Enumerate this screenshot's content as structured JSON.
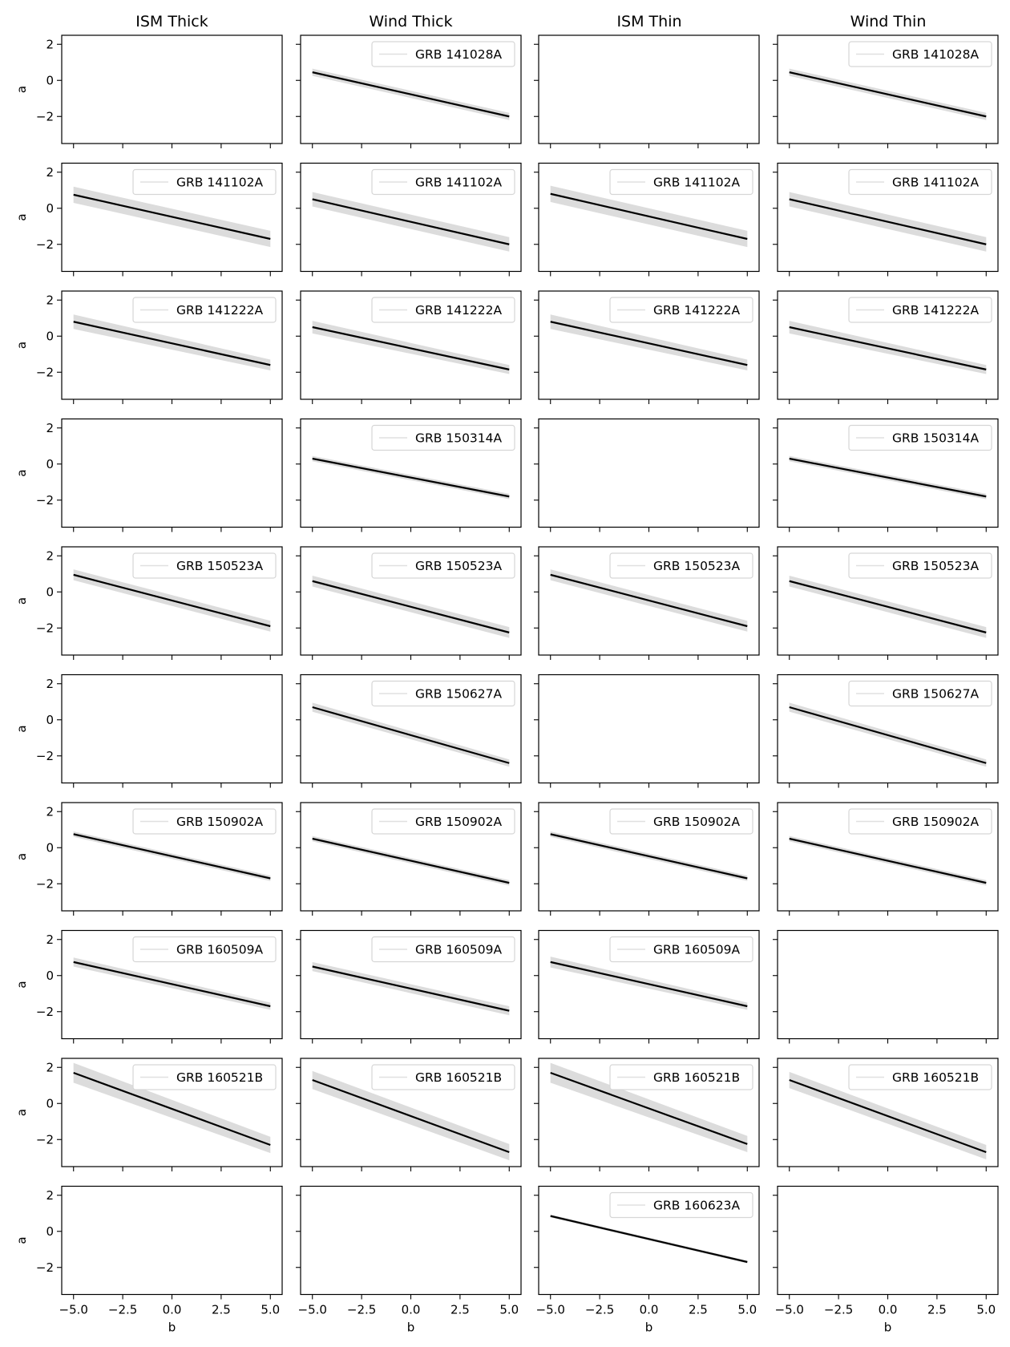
{
  "chart_data": {
    "type": "line",
    "layout": "grid-10x4",
    "columns": [
      "ISM Thick",
      "Wind Thick",
      "ISM Thin",
      "Wind Thin"
    ],
    "xlabel": "b",
    "ylabel": "a",
    "xlim": [
      -5.6,
      5.6
    ],
    "ylim": [
      -3.5,
      2.5
    ],
    "xticks": [
      -5.0,
      -2.5,
      0.0,
      2.5,
      5.0
    ],
    "xtick_labels": [
      "−5.0",
      "−2.5",
      "0.0",
      "2.5",
      "5.0"
    ],
    "yticks": [
      2,
      0,
      -2
    ],
    "ytick_labels": [
      "2",
      "0",
      "−2"
    ],
    "line_color": "#000000",
    "band_color": "#dcdcdc",
    "legend_placement": "upper right",
    "rows": [
      {
        "grb": "GRB 141028A",
        "panels": [
          null,
          {
            "y_start": 0.45,
            "y_end": -2.0,
            "band_start": 0.2,
            "band_end": 0.2
          },
          null,
          {
            "y_start": 0.45,
            "y_end": -2.0,
            "band_start": 0.2,
            "band_end": 0.2
          }
        ]
      },
      {
        "grb": "GRB 141102A",
        "panels": [
          {
            "y_start": 0.75,
            "y_end": -1.7,
            "band_start": 0.45,
            "band_end": 0.45
          },
          {
            "y_start": 0.5,
            "y_end": -2.0,
            "band_start": 0.4,
            "band_end": 0.4
          },
          {
            "y_start": 0.8,
            "y_end": -1.7,
            "band_start": 0.45,
            "band_end": 0.45
          },
          {
            "y_start": 0.5,
            "y_end": -2.0,
            "band_start": 0.4,
            "band_end": 0.4
          }
        ]
      },
      {
        "grb": "GRB 141222A",
        "panels": [
          {
            "y_start": 0.8,
            "y_end": -1.6,
            "band_start": 0.4,
            "band_end": 0.3
          },
          {
            "y_start": 0.5,
            "y_end": -1.85,
            "band_start": 0.35,
            "band_end": 0.25
          },
          {
            "y_start": 0.8,
            "y_end": -1.6,
            "band_start": 0.4,
            "band_end": 0.3
          },
          {
            "y_start": 0.5,
            "y_end": -1.85,
            "band_start": 0.35,
            "band_end": 0.25
          }
        ]
      },
      {
        "grb": "GRB 150314A",
        "panels": [
          null,
          {
            "y_start": 0.3,
            "y_end": -1.8,
            "band_start": 0.15,
            "band_end": 0.15
          },
          null,
          {
            "y_start": 0.3,
            "y_end": -1.8,
            "band_start": 0.15,
            "band_end": 0.15
          }
        ]
      },
      {
        "grb": "GRB 150523A",
        "panels": [
          {
            "y_start": 0.95,
            "y_end": -1.9,
            "band_start": 0.3,
            "band_end": 0.3
          },
          {
            "y_start": 0.6,
            "y_end": -2.25,
            "band_start": 0.3,
            "band_end": 0.3
          },
          {
            "y_start": 0.95,
            "y_end": -1.9,
            "band_start": 0.3,
            "band_end": 0.3
          },
          {
            "y_start": 0.6,
            "y_end": -2.25,
            "band_start": 0.3,
            "band_end": 0.3
          }
        ]
      },
      {
        "grb": "GRB 150627A",
        "panels": [
          null,
          {
            "y_start": 0.7,
            "y_end": -2.4,
            "band_start": 0.25,
            "band_end": 0.2
          },
          null,
          {
            "y_start": 0.7,
            "y_end": -2.4,
            "band_start": 0.25,
            "band_end": 0.2
          }
        ]
      },
      {
        "grb": "GRB 150902A",
        "panels": [
          {
            "y_start": 0.75,
            "y_end": -1.7,
            "band_start": 0.15,
            "band_end": 0.15
          },
          {
            "y_start": 0.5,
            "y_end": -1.95,
            "band_start": 0.15,
            "band_end": 0.15
          },
          {
            "y_start": 0.75,
            "y_end": -1.7,
            "band_start": 0.15,
            "band_end": 0.15
          },
          {
            "y_start": 0.5,
            "y_end": -1.95,
            "band_start": 0.15,
            "band_end": 0.15
          }
        ]
      },
      {
        "grb": "GRB 160509A",
        "panels": [
          {
            "y_start": 0.75,
            "y_end": -1.7,
            "band_start": 0.25,
            "band_end": 0.2
          },
          {
            "y_start": 0.5,
            "y_end": -1.95,
            "band_start": 0.25,
            "band_end": 0.25
          },
          {
            "y_start": 0.75,
            "y_end": -1.7,
            "band_start": 0.3,
            "band_end": 0.2
          },
          null
        ]
      },
      {
        "grb": "GRB 160521B",
        "panels": [
          {
            "y_start": 1.7,
            "y_end": -2.3,
            "band_start": 0.55,
            "band_end": 0.45
          },
          {
            "y_start": 1.3,
            "y_end": -2.7,
            "band_start": 0.5,
            "band_end": 0.45
          },
          {
            "y_start": 1.7,
            "y_end": -2.25,
            "band_start": 0.55,
            "band_end": 0.45
          },
          {
            "y_start": 1.3,
            "y_end": -2.7,
            "band_start": 0.45,
            "band_end": 0.4
          }
        ]
      },
      {
        "grb": "GRB 160623A",
        "panels": [
          null,
          null,
          {
            "y_start": 0.85,
            "y_end": -1.7,
            "band_start": 0.08,
            "band_end": 0.08
          },
          null
        ]
      }
    ]
  }
}
